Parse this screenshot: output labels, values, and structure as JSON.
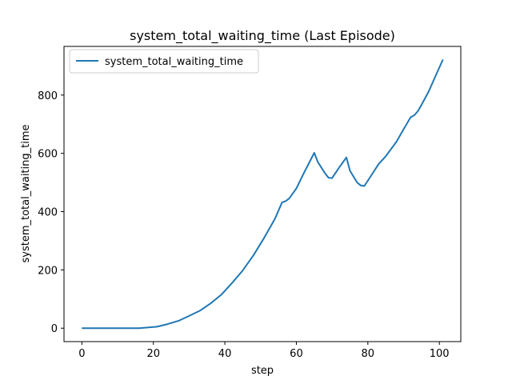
{
  "chart_data": {
    "type": "line",
    "title": "system_total_waiting_time (Last Episode)",
    "xlabel": "step",
    "ylabel": "system_total_waiting_time",
    "xlim": [
      -5,
      106
    ],
    "ylim": [
      -46,
      967
    ],
    "xticks": [
      0,
      20,
      40,
      60,
      80,
      100
    ],
    "yticks": [
      0,
      200,
      400,
      600,
      800
    ],
    "grid": false,
    "legend_position": "top-left",
    "series": [
      {
        "name": "system_total_waiting_time",
        "color": "#1f77b4",
        "x": [
          0,
          4,
          8,
          12,
          16,
          18,
          21,
          24,
          27,
          30,
          33,
          36,
          39,
          42,
          45,
          48,
          51,
          54,
          56,
          57,
          58,
          60,
          62,
          65,
          66,
          68,
          69,
          70,
          72,
          74,
          75,
          77,
          78,
          79,
          81,
          83,
          85,
          88,
          90,
          92,
          93,
          94,
          95,
          97,
          99,
          101
        ],
        "y": [
          0,
          0,
          0,
          0,
          0,
          2,
          5,
          14,
          25,
          42,
          60,
          85,
          115,
          155,
          198,
          250,
          310,
          375,
          432,
          436,
          445,
          480,
          530,
          602,
          570,
          532,
          516,
          515,
          552,
          586,
          540,
          500,
          490,
          488,
          525,
          563,
          590,
          640,
          683,
          724,
          731,
          745,
          766,
          812,
          867,
          922
        ]
      }
    ]
  }
}
